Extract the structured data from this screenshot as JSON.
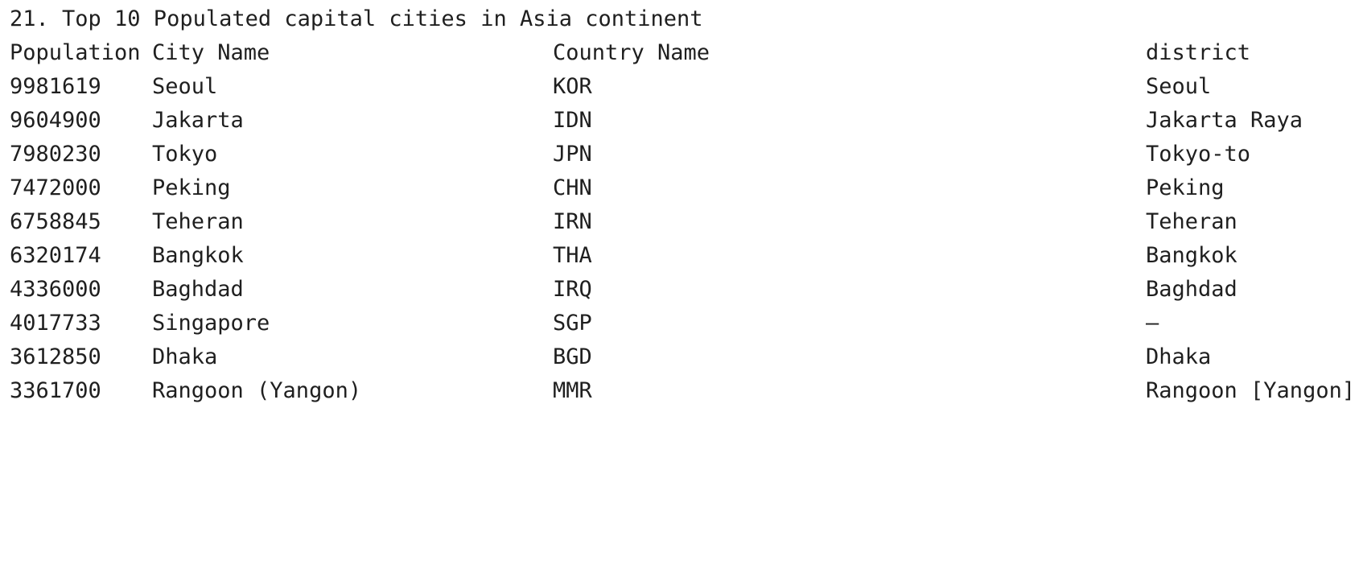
{
  "console": {
    "title": "21. Top 10 Populated capital cities in Asia continent",
    "headers": {
      "population": "Population",
      "city": "City Name",
      "country": "Country Name",
      "district": "district"
    },
    "rows": [
      {
        "population": "9981619",
        "city": "Seoul",
        "country": "KOR",
        "district": "Seoul"
      },
      {
        "population": "9604900",
        "city": "Jakarta",
        "country": "IDN",
        "district": "Jakarta Raya"
      },
      {
        "population": "7980230",
        "city": "Tokyo",
        "country": "JPN",
        "district": "Tokyo-to"
      },
      {
        "population": "7472000",
        "city": "Peking",
        "country": "CHN",
        "district": "Peking"
      },
      {
        "population": "6758845",
        "city": "Teheran",
        "country": "IRN",
        "district": "Teheran"
      },
      {
        "population": "6320174",
        "city": "Bangkok",
        "country": "THA",
        "district": "Bangkok"
      },
      {
        "population": "4336000",
        "city": "Baghdad",
        "country": "IRQ",
        "district": "Baghdad"
      },
      {
        "population": "4017733",
        "city": "Singapore",
        "country": "SGP",
        "district": "–"
      },
      {
        "population": "3612850",
        "city": "Dhaka",
        "country": "BGD",
        "district": "Dhaka"
      },
      {
        "population": "3361700",
        "city": "Rangoon (Yangon)",
        "country": "MMR",
        "district": "Rangoon [Yangon]"
      }
    ]
  }
}
